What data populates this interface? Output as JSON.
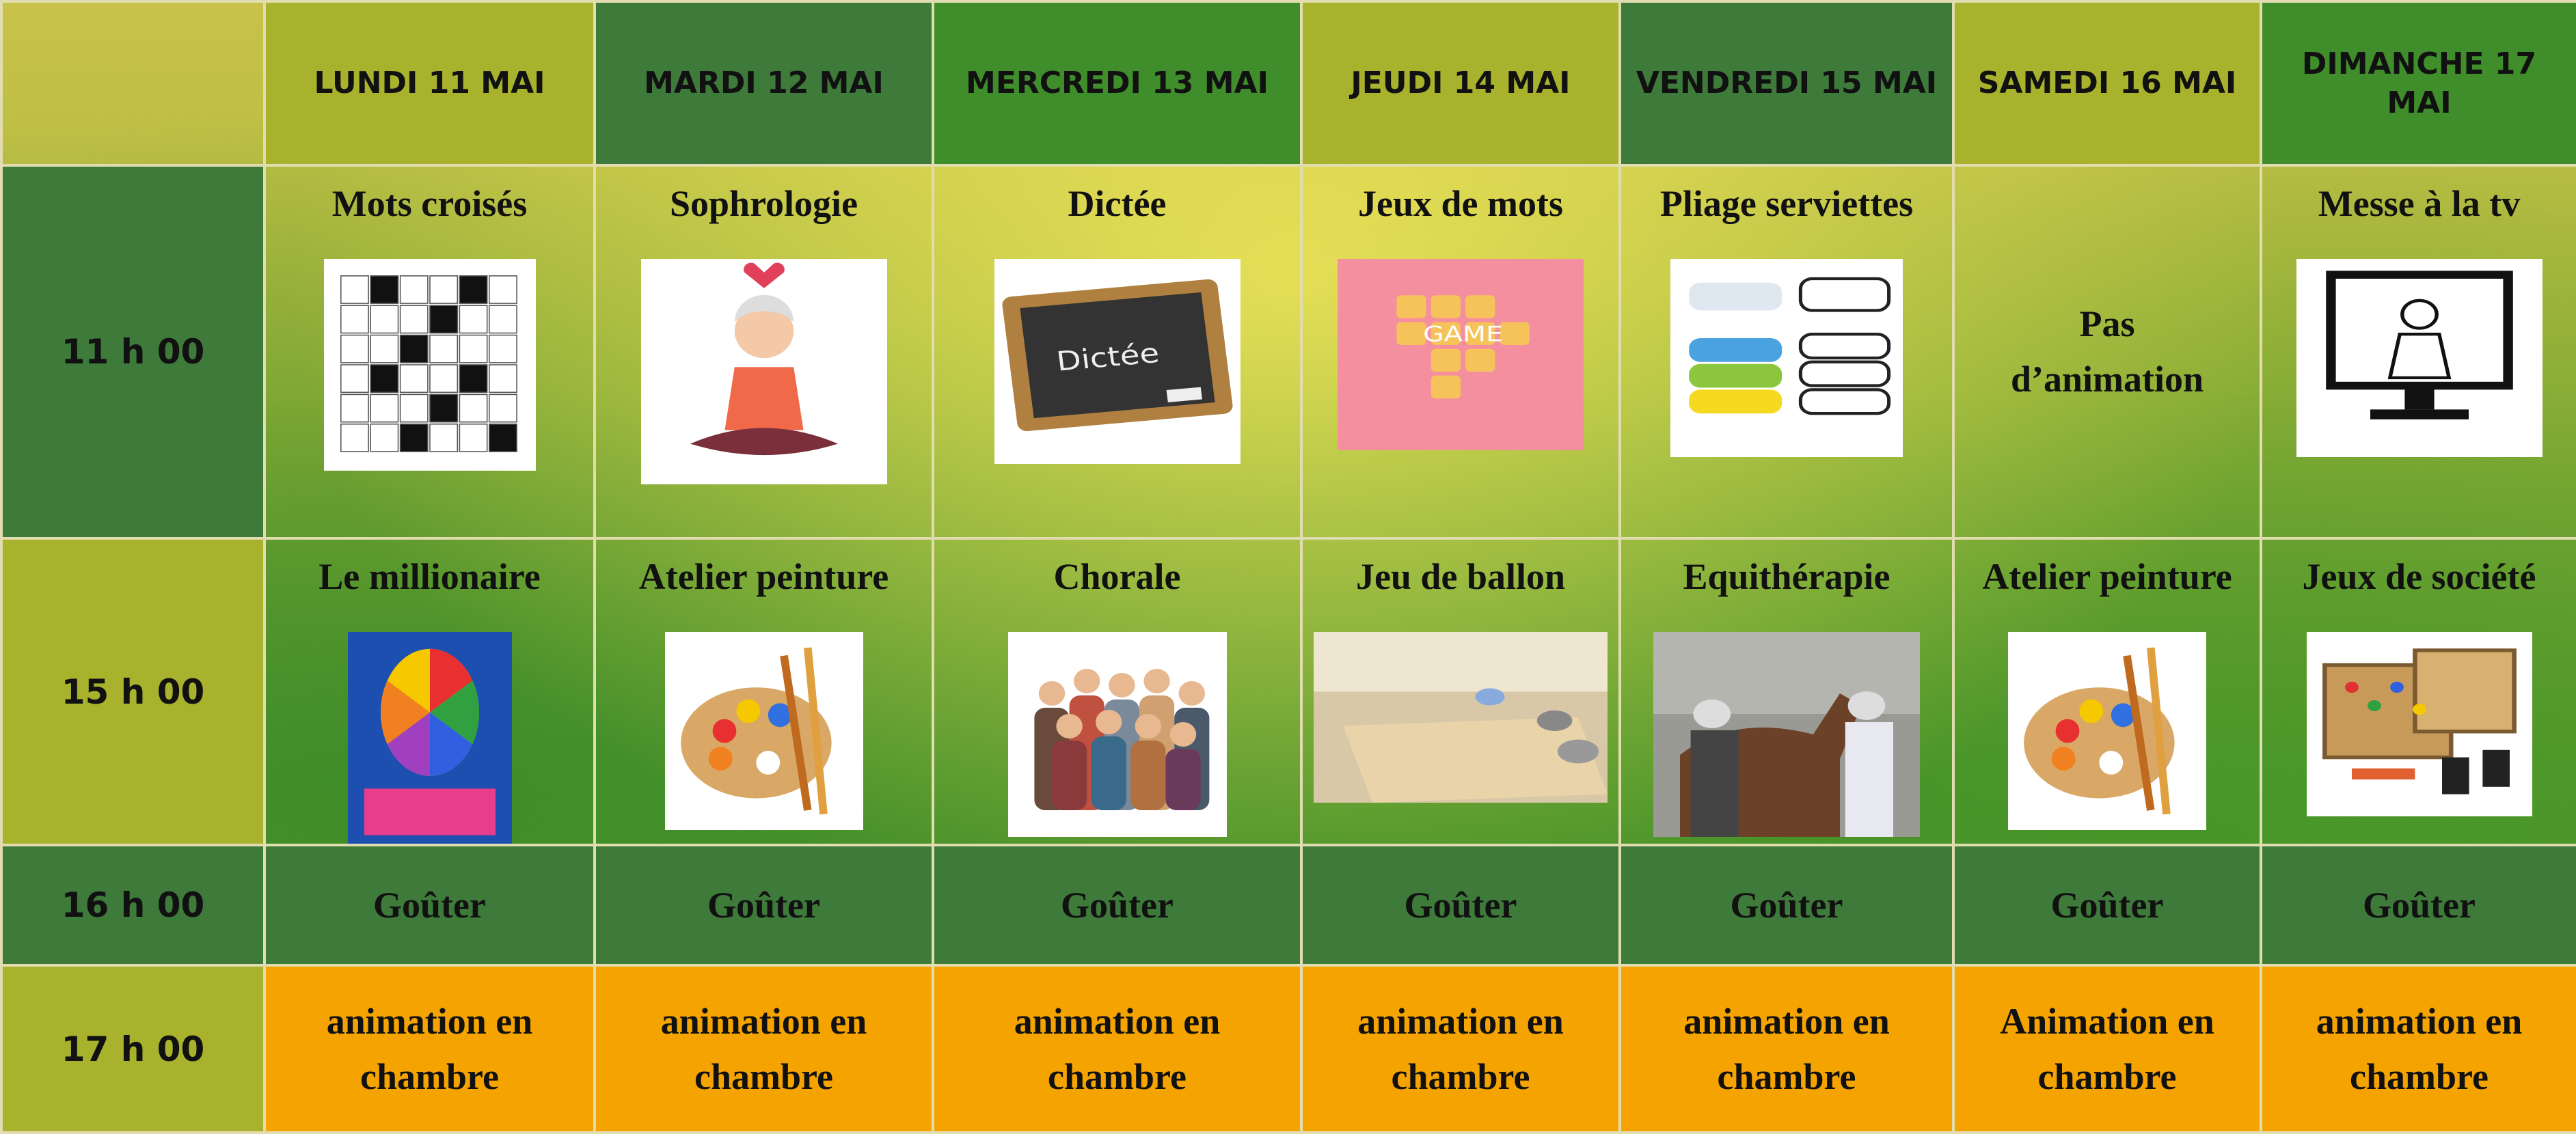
{
  "days": [
    "LUNDI 11 MAI",
    "MARDI 12 MAI",
    "MERCREDI 13 MAI",
    "JEUDI 14 MAI",
    "VENDREDI 15 MAI",
    "SAMEDI 16 MAI",
    "DIMANCHE 17 MAI"
  ],
  "rows": [
    {
      "time": "11 h 00",
      "cells": [
        "Mots croisés",
        "Sophrologie",
        "Dictée",
        "Jeux de mots",
        "Pliage serviettes",
        "Pas d’animation",
        "Messe à la tv"
      ]
    },
    {
      "time": "15 h 00",
      "cells": [
        "Le millionaire",
        "Atelier peinture",
        "Chorale",
        "Jeu de ballon",
        "Equithérapie",
        "Atelier peinture",
        "Jeux de société"
      ]
    },
    {
      "time": "16 h 00",
      "cells": [
        "Goûter",
        "Goûter",
        "Goûter",
        "Goûter",
        "Goûter",
        "Goûter",
        "Goûter"
      ]
    },
    {
      "time": "17 h 00",
      "cells": [
        "animation en chambre",
        "animation en chambre",
        "animation en chambre",
        "animation en chambre",
        "animation en chambre",
        "Animation en chambre",
        "animation en chambre"
      ]
    }
  ],
  "images": {
    "chalkboard": "Dictée",
    "game_tiles": "GAME"
  }
}
